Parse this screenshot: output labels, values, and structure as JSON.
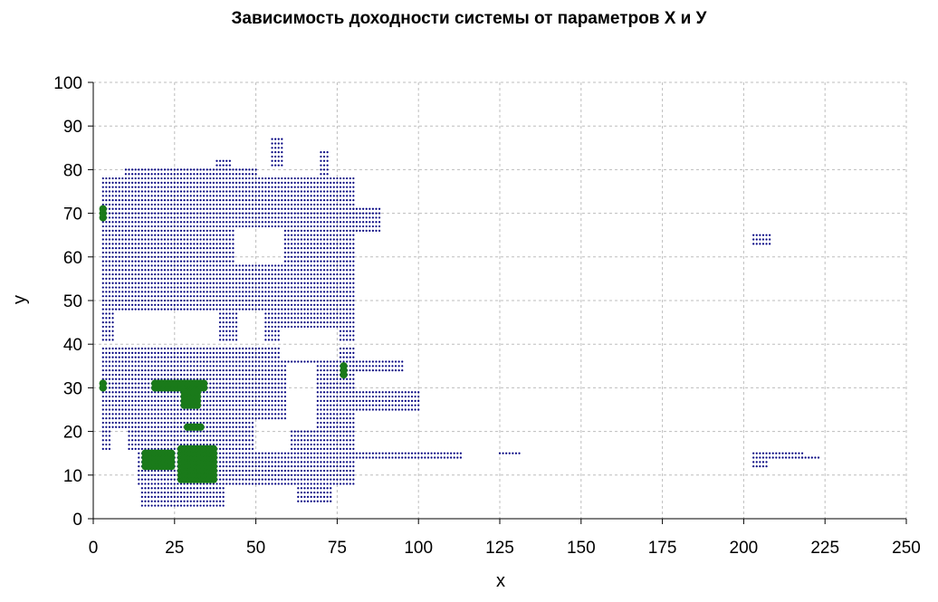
{
  "chart_data": {
    "type": "scatter",
    "title": "Зависимость доходности системы от параметров X и У",
    "xlabel": "x",
    "ylabel": "y",
    "xlim": [
      0,
      250
    ],
    "ylim": [
      0,
      100
    ],
    "xticks": [
      "0",
      "25",
      "50",
      "75",
      "100",
      "125",
      "150",
      "175",
      "200",
      "225",
      "250"
    ],
    "yticks": [
      "0",
      "10",
      "20",
      "30",
      "40",
      "50",
      "60",
      "70",
      "80",
      "90",
      "100"
    ],
    "grid": true,
    "colors": {
      "base": "#000080",
      "highlight": "#1a7a1a"
    },
    "series": [
      {
        "marker": "small-dot",
        "color": "#000080",
        "regions": [
          {
            "x": [
              3,
              80
            ],
            "y": [
              54,
              78
            ],
            "step": [
              1,
              1
            ]
          },
          {
            "x": [
              10,
              50
            ],
            "y": [
              79,
              80
            ],
            "step": [
              1,
              1
            ]
          },
          {
            "x": [
              38,
              42
            ],
            "y": [
              81,
              82
            ],
            "step": [
              1,
              1
            ]
          },
          {
            "x": [
              55,
              58
            ],
            "y": [
              81,
              87
            ],
            "step": [
              1,
              1
            ]
          },
          {
            "x": [
              70,
              72
            ],
            "y": [
              79,
              84
            ],
            "step": [
              1,
              1
            ]
          },
          {
            "x": [
              80,
              88
            ],
            "y": [
              66,
              71
            ],
            "step": [
              1,
              1
            ]
          },
          {
            "x": [
              3,
              80
            ],
            "y": [
              41,
              53
            ],
            "step": [
              1,
              1
            ]
          },
          {
            "x": [
              3,
              80
            ],
            "y": [
              22,
              39
            ],
            "step": [
              1,
              1
            ]
          },
          {
            "x": [
              80,
              95
            ],
            "y": [
              34,
              36
            ],
            "step": [
              1,
              1
            ]
          },
          {
            "x": [
              80,
              100
            ],
            "y": [
              25,
              29
            ],
            "step": [
              1,
              1
            ]
          },
          {
            "x": [
              3,
              80
            ],
            "y": [
              16,
              21
            ],
            "step": [
              1,
              1
            ]
          },
          {
            "x": [
              14,
              80
            ],
            "y": [
              8,
              15
            ],
            "step": [
              1,
              1
            ]
          },
          {
            "x": [
              80,
              113
            ],
            "y": [
              14,
              15
            ],
            "step": [
              1,
              1
            ]
          },
          {
            "x": [
              125,
              131
            ],
            "y": [
              15,
              15
            ],
            "step": [
              1,
              1
            ]
          },
          {
            "x": [
              15,
              40
            ],
            "y": [
              3,
              7
            ],
            "step": [
              1,
              1
            ]
          },
          {
            "x": [
              62,
              73
            ],
            "y": [
              4,
              7
            ],
            "step": [
              1,
              1
            ]
          },
          {
            "x": [
              203,
              208
            ],
            "y": [
              63,
              65
            ],
            "step": [
              1,
              1
            ]
          },
          {
            "x": [
              203,
              218
            ],
            "y": [
              14,
              15
            ],
            "step": [
              1,
              1
            ]
          },
          {
            "x": [
              218,
              223
            ],
            "y": [
              14,
              14
            ],
            "step": [
              1,
              1
            ]
          },
          {
            "x": [
              203,
              207
            ],
            "y": [
              12,
              13
            ],
            "step": [
              1,
              1
            ]
          }
        ],
        "holes": [
          {
            "x": [
              7,
              25
            ],
            "y": [
              40,
              47
            ]
          },
          {
            "x": [
              25,
              38
            ],
            "y": [
              41,
              47
            ]
          },
          {
            "x": [
              45,
              52
            ],
            "y": [
              41,
              47
            ]
          },
          {
            "x": [
              58,
              75
            ],
            "y": [
              37,
              43
            ]
          },
          {
            "x": [
              6,
              10
            ],
            "y": [
              16,
              20
            ]
          },
          {
            "x": [
              50,
              60
            ],
            "y": [
              16,
              22
            ]
          },
          {
            "x": [
              48,
              62
            ],
            "y": [
              4,
              7
            ]
          },
          {
            "x": [
              60,
              68
            ],
            "y": [
              21,
              35
            ]
          },
          {
            "x": [
              44,
              58
            ],
            "y": [
              59,
              66
            ]
          }
        ]
      },
      {
        "marker": "large-dot",
        "color": "#1a7a1a",
        "regions": [
          {
            "x": [
              3,
              3
            ],
            "y": [
              69,
              71
            ],
            "step": [
              1,
              1
            ]
          },
          {
            "x": [
              3,
              3
            ],
            "y": [
              30,
              31
            ],
            "step": [
              1,
              1
            ]
          },
          {
            "x": [
              19,
              34
            ],
            "y": [
              30,
              31
            ],
            "step": [
              1,
              1
            ]
          },
          {
            "x": [
              28,
              32
            ],
            "y": [
              26,
              29
            ],
            "step": [
              1,
              1
            ]
          },
          {
            "x": [
              29,
              33
            ],
            "y": [
              21,
              21
            ],
            "step": [
              1,
              1
            ]
          },
          {
            "x": [
              77,
              77
            ],
            "y": [
              33,
              35
            ],
            "step": [
              1,
              1
            ]
          },
          {
            "x": [
              16,
              24
            ],
            "y": [
              12,
              15
            ],
            "step": [
              1,
              1
            ]
          },
          {
            "x": [
              27,
              37
            ],
            "y": [
              9,
              16
            ],
            "step": [
              1,
              1
            ]
          }
        ],
        "holes": []
      }
    ]
  }
}
